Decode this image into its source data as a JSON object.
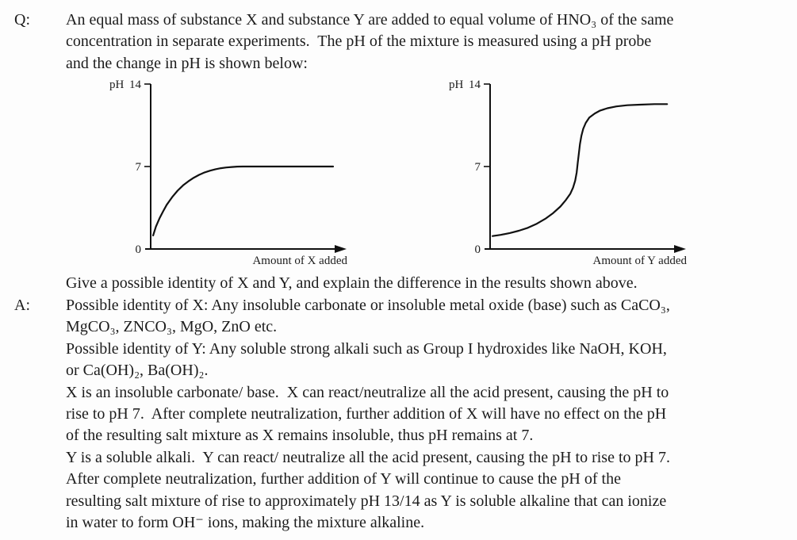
{
  "page": {
    "background": "#fdfdfd",
    "text_color": "#1c1c1c"
  },
  "question": {
    "label": "Q:",
    "lines": [
      "An equal mass of substance X and substance Y are added to equal volume of HNO₃ of the same",
      "concentration in separate experiments.  The pH of the mixture is measured using a pH probe",
      "and the change in pH is shown below:",
      "Give a possible identity of X and Y, and explain the difference in the results shown above."
    ]
  },
  "answer": {
    "label": "A:",
    "lines": [
      "Possible identity of X: Any insoluble carbonate or insoluble metal oxide (base) such as CaCO₃,",
      "MgCO₃, ZNCO₃, MgO, ZnO etc.",
      "Possible identity of Y: Any soluble strong alkali such as Group I hydroxides like NaOH, KOH,",
      "or Ca(OH)₂, Ba(OH)₂.",
      "X is an insoluble carbonate/ base.  X can react/neutralize all the acid present, causing the pH to",
      "rise to pH 7.  After complete neutralization, further addition of X will have no effect on the pH",
      "of the resulting salt mixture as X remains insoluble, thus pH remains at 7.",
      "Y is a soluble alkali.  Y can react/ neutralize all the acid present, causing the pH to rise to pH 7.",
      "After complete neutralization, further addition of Y will continue to cause the pH of the",
      "resulting salt mixture of rise to approximately pH 13/14 as Y is soluble alkaline that can ionize",
      "in water to form OH⁻ ions, making the mixture alkaline."
    ]
  },
  "chart_data": [
    {
      "type": "line",
      "title": "",
      "ylabel": "pH",
      "xlabel": "Amount of X added",
      "ylim": [
        0,
        14
      ],
      "xlim": [
        0,
        100
      ],
      "yticks": [
        0,
        7,
        14
      ],
      "grid": false,
      "legend": null,
      "key_readings": {
        "initial_pH": 1,
        "final_plateau_pH": 7
      },
      "series": [
        {
          "name": "pH vs amount of X added",
          "x": [
            0.5,
            2,
            4,
            6,
            8,
            11,
            14,
            17,
            20,
            23,
            26,
            29,
            32,
            35,
            38,
            41,
            44,
            47,
            50,
            56,
            100
          ],
          "y": [
            1.15,
            1.9,
            2.6,
            3.2,
            3.75,
            4.4,
            4.95,
            5.4,
            5.75,
            6.05,
            6.3,
            6.5,
            6.65,
            6.77,
            6.86,
            6.92,
            6.96,
            6.99,
            7,
            7,
            7
          ]
        }
      ]
    },
    {
      "type": "line",
      "title": "",
      "ylabel": "pH",
      "xlabel": "Amount of Y added",
      "ylim": [
        0,
        14
      ],
      "xlim": [
        0,
        100
      ],
      "yticks": [
        0,
        7,
        14
      ],
      "grid": false,
      "legend": null,
      "key_readings": {
        "initial_pH": 1,
        "steep_jump_pH_range": [
          5,
          10
        ],
        "final_plateau_pH": 12.3
      },
      "series": [
        {
          "name": "pH vs amount of Y added",
          "x": [
            0.5,
            5,
            10,
            15,
            20,
            25,
            30,
            34,
            38,
            41,
            43.5,
            45,
            46.2,
            47,
            47.6,
            48.2,
            48.8,
            49.6,
            50.6,
            52,
            54,
            57,
            60,
            64,
            69,
            75,
            82,
            90,
            97
          ],
          "y": [
            1.1,
            1.2,
            1.35,
            1.55,
            1.8,
            2.15,
            2.6,
            3.05,
            3.6,
            4.15,
            4.7,
            5.2,
            5.8,
            6.5,
            7.3,
            8.1,
            8.9,
            9.6,
            10.2,
            10.7,
            11.15,
            11.5,
            11.75,
            11.95,
            12.1,
            12.2,
            12.25,
            12.3,
            12.3
          ]
        }
      ]
    }
  ]
}
